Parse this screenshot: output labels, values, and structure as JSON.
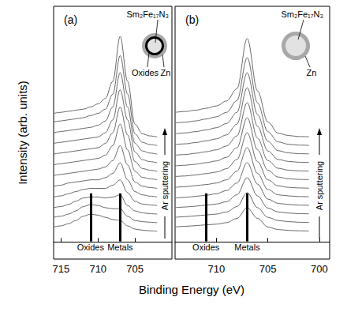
{
  "figure": {
    "xlabel": "Binding Energy (eV)",
    "ylabel": "Intensity (arb. units)"
  },
  "chart_data": [
    {
      "type": "line",
      "title": "(a)",
      "x": [
        716,
        715,
        714,
        713,
        712,
        711,
        710,
        709,
        708,
        707,
        706,
        705,
        704,
        703,
        702
      ],
      "xlim": [
        716,
        700
      ],
      "xticks": [
        715,
        710,
        705
      ],
      "ylim": [
        -8,
        110
      ],
      "tick_labels": "x",
      "grid": false,
      "color": "#6a6a6a",
      "series": [
        {
          "values": [
            7,
            7.5,
            8.5,
            10,
            12,
            13,
            12.5,
            11.5,
            10.5,
            10,
            7.5,
            6,
            5.5,
            5.2,
            5
          ]
        },
        {
          "values": [
            11.5,
            12,
            13,
            14.5,
            16.5,
            17.5,
            17,
            16,
            15.5,
            15.5,
            12,
            10,
            9.5,
            9.2,
            9
          ]
        },
        {
          "values": [
            16,
            16.5,
            17.5,
            19,
            20.5,
            21,
            21,
            20.5,
            21,
            22,
            17,
            14.5,
            13.6,
            13.2,
            13
          ]
        },
        {
          "values": [
            21,
            21.5,
            22.5,
            23.5,
            24.5,
            25,
            25,
            25,
            26.5,
            29,
            23,
            19,
            17.7,
            17.3,
            17
          ]
        },
        {
          "values": [
            26,
            26.5,
            27.5,
            28,
            28.5,
            29,
            29,
            30,
            32,
            37,
            29,
            23.5,
            22,
            21.4,
            21
          ]
        },
        {
          "values": [
            31,
            31.5,
            32,
            32.5,
            33,
            33.5,
            34,
            35,
            38,
            45,
            36,
            28,
            26,
            25.4,
            25
          ]
        },
        {
          "values": [
            36,
            36.5,
            37,
            37.5,
            38,
            38.5,
            39,
            40.5,
            45,
            55,
            43,
            33,
            30.2,
            29.5,
            29
          ]
        },
        {
          "values": [
            41,
            41.5,
            42,
            42.5,
            43,
            43.5,
            44,
            46,
            51,
            63,
            50,
            37.5,
            34.3,
            33.5,
            33
          ]
        },
        {
          "values": [
            46,
            46.5,
            47,
            47.5,
            48,
            48.5,
            49,
            51,
            57,
            71,
            57,
            42,
            38.4,
            37.5,
            37
          ]
        },
        {
          "values": [
            51,
            51.5,
            52,
            52.5,
            53,
            53.5,
            54.5,
            56.5,
            63,
            79,
            63,
            46,
            42.5,
            41.5,
            41
          ]
        },
        {
          "values": [
            56,
            56.5,
            57,
            57.5,
            58,
            59,
            60,
            62,
            69,
            87,
            69,
            50.5,
            46.5,
            45.5,
            45
          ]
        },
        {
          "values": [
            60,
            60.5,
            61,
            61.5,
            62,
            63,
            64.5,
            67,
            75,
            96,
            75,
            55,
            50.5,
            49.5,
            49
          ]
        }
      ],
      "annotations": [
        {
          "text": "Oxides",
          "x": 711
        },
        {
          "text": "Metals",
          "x": 707
        },
        {
          "text": "Ar sputtering"
        }
      ],
      "inset": {
        "core": "Sm₂Fe₁₇N₃",
        "shell": "Oxides",
        "coating": "Zn"
      }
    },
    {
      "type": "line",
      "title": "(b)",
      "x": [
        714,
        713,
        712,
        711,
        710,
        709,
        708,
        707,
        706,
        705,
        704,
        703,
        702,
        701
      ],
      "xlim": [
        714,
        699
      ],
      "xticks": [
        710,
        705,
        700
      ],
      "ylim": [
        -8,
        110
      ],
      "tick_labels": "x",
      "grid": false,
      "color": "#6a6a6a",
      "series": [
        {
          "values": [
            7,
            7.3,
            7.6,
            8,
            8.3,
            9,
            11,
            16,
            11,
            7,
            5.8,
            5.4,
            5.2,
            5.1
          ]
        },
        {
          "values": [
            11.5,
            11.8,
            12.2,
            12.6,
            13,
            14,
            16.5,
            23,
            16,
            11.5,
            10,
            9.5,
            9.2,
            9.1
          ]
        },
        {
          "values": [
            16,
            16.3,
            16.7,
            17.2,
            17.7,
            18.8,
            22,
            30,
            21.5,
            15.8,
            14,
            13.5,
            13.2,
            13.1
          ]
        },
        {
          "values": [
            20.5,
            20.8,
            21.3,
            21.8,
            22.5,
            24,
            27.5,
            37,
            27,
            20,
            18,
            17.5,
            17.2,
            17.1
          ]
        },
        {
          "values": [
            25.5,
            25.8,
            26.3,
            26.8,
            27.5,
            29,
            33,
            44,
            32,
            24.5,
            22,
            21.5,
            21.2,
            21.1
          ]
        },
        {
          "values": [
            30.5,
            30.8,
            31.3,
            31.9,
            32.6,
            34.2,
            38.5,
            51,
            37.5,
            29,
            26.2,
            25.5,
            25.2,
            25.1
          ]
        },
        {
          "values": [
            35.5,
            35.8,
            36.3,
            37,
            37.8,
            39.5,
            44,
            58,
            43,
            33.5,
            30.3,
            29.5,
            29.2,
            29.1
          ]
        },
        {
          "values": [
            40.5,
            40.8,
            41.4,
            42.1,
            43,
            44.8,
            49.5,
            65,
            48.5,
            38,
            34.4,
            33.5,
            33.2,
            33.1
          ]
        },
        {
          "values": [
            45.5,
            45.8,
            46.4,
            47.2,
            48.1,
            50,
            55,
            72,
            54,
            42.5,
            38.5,
            37.6,
            37.2,
            37.1
          ]
        },
        {
          "values": [
            50.5,
            50.9,
            51.5,
            52.3,
            53.3,
            55.3,
            60.5,
            79,
            59.5,
            47,
            42.6,
            41.6,
            41.2,
            41.1
          ]
        },
        {
          "values": [
            55.5,
            55.9,
            56.5,
            57.4,
            58.4,
            60.5,
            66,
            86,
            65,
            51.5,
            46.7,
            45.6,
            45.2,
            45.1
          ]
        },
        {
          "values": [
            60.5,
            60.9,
            61.5,
            62.4,
            63.5,
            65.8,
            71.5,
            95,
            70.5,
            56,
            50.8,
            49.7,
            49.2,
            49.1
          ]
        }
      ],
      "annotations": [
        {
          "text": "Oxides",
          "x": 711
        },
        {
          "text": "Metals",
          "x": 707
        },
        {
          "text": "Ar sputtering"
        }
      ],
      "inset": {
        "core": "Sm₂Fe₁₇N₃",
        "coating": "Zn"
      }
    }
  ]
}
